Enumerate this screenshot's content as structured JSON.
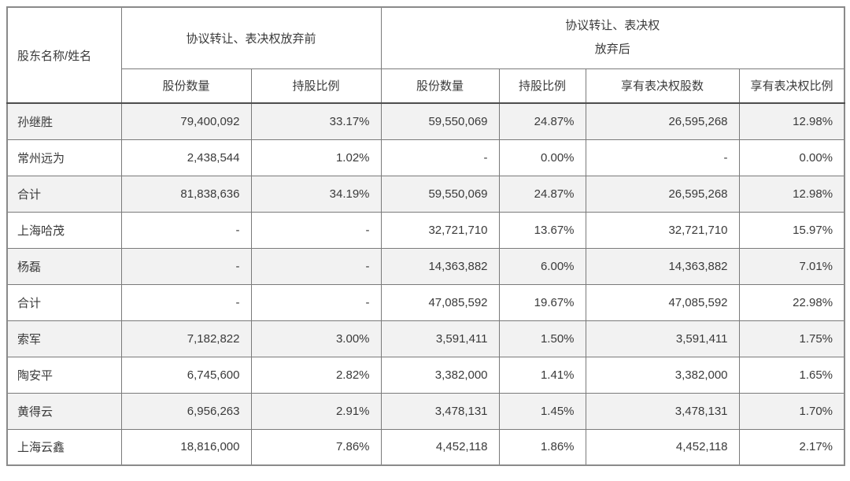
{
  "table": {
    "header": {
      "shareholder_col": "股东名称/姓名",
      "before_group": "协议转让、表决权放弃前",
      "after_group_line1": "协议转让、表决权",
      "after_group_line2": "放弃后",
      "sub_headers": [
        "股份数量",
        "持股比例",
        "股份数量",
        "持股比例",
        "享有表决权股数",
        "享有表决权比例"
      ]
    },
    "rows": [
      {
        "name": "孙继胜",
        "cells": [
          "79,400,092",
          "33.17%",
          "59,550,069",
          "24.87%",
          "26,595,268",
          "12.98%"
        ]
      },
      {
        "name": "常州远为",
        "cells": [
          "2,438,544",
          "1.02%",
          "-",
          "0.00%",
          "-",
          "0.00%"
        ]
      },
      {
        "name": "合计",
        "cells": [
          "81,838,636",
          "34.19%",
          "59,550,069",
          "24.87%",
          "26,595,268",
          "12.98%"
        ]
      },
      {
        "name": "上海哈茂",
        "cells": [
          "-",
          "-",
          "32,721,710",
          "13.67%",
          "32,721,710",
          "15.97%"
        ]
      },
      {
        "name": "杨磊",
        "cells": [
          "-",
          "-",
          "14,363,882",
          "6.00%",
          "14,363,882",
          "7.01%"
        ]
      },
      {
        "name": "合计",
        "cells": [
          "-",
          "-",
          "47,085,592",
          "19.67%",
          "47,085,592",
          "22.98%"
        ]
      },
      {
        "name": "索军",
        "cells": [
          "7,182,822",
          "3.00%",
          "3,591,411",
          "1.50%",
          "3,591,411",
          "1.75%"
        ]
      },
      {
        "name": "陶安平",
        "cells": [
          "6,745,600",
          "2.82%",
          "3,382,000",
          "1.41%",
          "3,382,000",
          "1.65%"
        ]
      },
      {
        "name": "黄得云",
        "cells": [
          "6,956,263",
          "2.91%",
          "3,478,131",
          "1.45%",
          "3,478,131",
          "1.70%"
        ]
      },
      {
        "name": "上海云鑫",
        "cells": [
          "18,816,000",
          "7.86%",
          "4,452,118",
          "1.86%",
          "4,452,118",
          "2.17%"
        ]
      }
    ],
    "colors": {
      "alt_row_bg": "#f2f2f2",
      "inner_border": "#7a7a7a",
      "outer_border": "#8a8a8a",
      "header_divider": "#4d4d4d",
      "text": "#3a3a3a"
    }
  }
}
